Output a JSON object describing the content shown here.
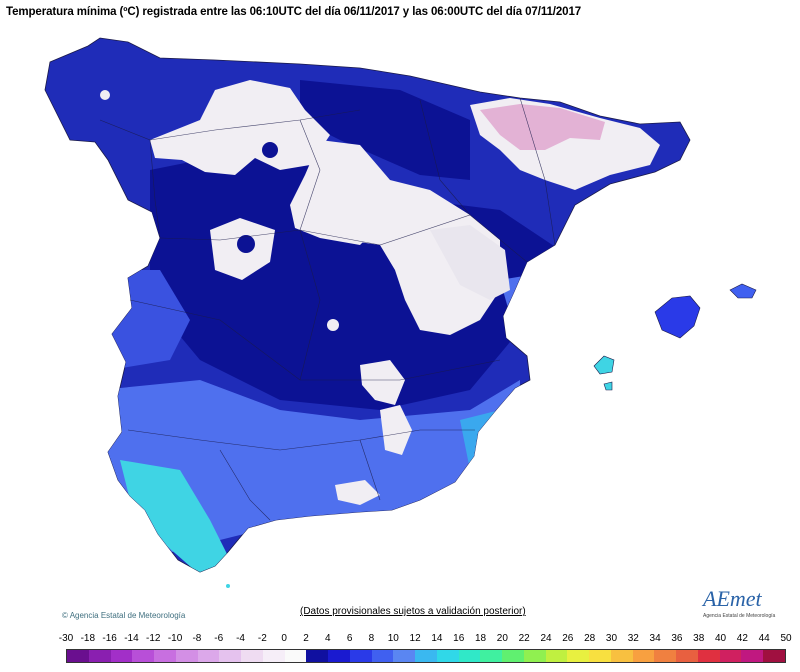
{
  "title": "Temperatura mínima (ºC) registrada entre las 06:10UTC del día 06/11/2017 y las 06:00UTC del día 07/11/2017",
  "copyright": "Agencia Estatal de Meteorología",
  "provisional_note": "(Datos provisionales sujetos a validación posterior)",
  "logo": {
    "wordmark": "AEmet",
    "subtitle": "Agencia Estatal de Meteorología"
  },
  "legend": {
    "labels": [
      "-30",
      "-18",
      "-16",
      "-14",
      "-12",
      "-10",
      "-8",
      "-6",
      "-4",
      "-2",
      "0",
      "2",
      "4",
      "6",
      "8",
      "10",
      "12",
      "14",
      "16",
      "18",
      "20",
      "22",
      "24",
      "26",
      "28",
      "30",
      "32",
      "34",
      "36",
      "38",
      "40",
      "42",
      "44",
      "50"
    ],
    "colors": [
      "#6a0f8f",
      "#8a1fb0",
      "#a22fc8",
      "#b84fd8",
      "#c86fe0",
      "#d38fe5",
      "#dca8ea",
      "#e5c2ee",
      "#efdcf2",
      "#f6eef8",
      "#fafafa",
      "#1010a0",
      "#1a1ad0",
      "#2a3ae8",
      "#4060f0",
      "#5a86f2",
      "#3ab8f0",
      "#30d8e8",
      "#30e8c8",
      "#40f0a0",
      "#60f070",
      "#90f050",
      "#c0f040",
      "#e8f040",
      "#f8e040",
      "#f8c040",
      "#f8a040",
      "#f08040",
      "#e86040",
      "#e03040",
      "#d02060",
      "#c01880",
      "#a01040"
    ]
  },
  "regions": {
    "land_main_color": "#1f2cb8",
    "land_dark_color": "#0c1294",
    "frost_color": "#f1eef3",
    "pink_color": "#e3b2d5",
    "warm_light_color": "#4f70ee",
    "coast_cyan_color": "#3fd4e4"
  }
}
